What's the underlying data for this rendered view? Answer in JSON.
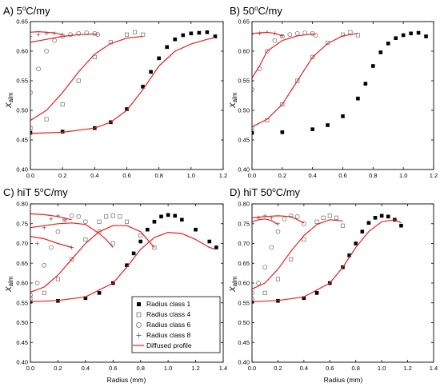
{
  "chart_data": [
    {
      "type": "scatter",
      "title": "A) 5°C/my",
      "title_main": "A) 5",
      "title_unit": "C/my",
      "xlabel": "",
      "ylabel": "Xalm",
      "ylabel_letter": "X",
      "ylabel_sub": "alm",
      "xlim": [
        0,
        1.2
      ],
      "ylim": [
        0.4,
        0.65
      ],
      "xticks": [
        "0.0",
        "0.2",
        "0.4",
        "0.6",
        "0.8",
        "1.0",
        "1.2"
      ],
      "yticks": [
        "0.40",
        "0.45",
        "0.50",
        "0.55",
        "0.60",
        "0.65"
      ],
      "series": [
        {
          "name": "Radius class 1",
          "marker": "square-filled",
          "x": [
            0,
            0.2,
            0.4,
            0.5,
            0.6,
            0.7,
            0.75,
            0.8,
            0.85,
            0.9,
            0.95,
            1.0,
            1.05,
            1.1,
            1.15
          ],
          "y": [
            0.462,
            0.464,
            0.47,
            0.48,
            0.502,
            0.54,
            0.565,
            0.588,
            0.607,
            0.62,
            0.627,
            0.63,
            0.631,
            0.632,
            0.625
          ]
        },
        {
          "name": "Radius class 4",
          "marker": "square-open",
          "x": [
            0,
            0.1,
            0.2,
            0.3,
            0.4,
            0.5,
            0.6,
            0.65,
            0.7
          ],
          "y": [
            0.47,
            0.485,
            0.51,
            0.55,
            0.59,
            0.615,
            0.628,
            0.632,
            0.628
          ]
        },
        {
          "name": "Radius class 6",
          "marker": "circle-open",
          "x": [
            0,
            0.05,
            0.1,
            0.15,
            0.2,
            0.25,
            0.3,
            0.35,
            0.4,
            0.42
          ],
          "y": [
            0.53,
            0.57,
            0.6,
            0.618,
            0.625,
            0.628,
            0.63,
            0.631,
            0.63,
            0.628
          ]
        },
        {
          "name": "Radius class 8",
          "marker": "plus",
          "x": [
            0,
            0.05,
            0.1,
            0.15,
            0.2
          ],
          "y": [
            0.625,
            0.628,
            0.63,
            0.63,
            0.628
          ]
        }
      ],
      "profiles": [
        {
          "name": "Diffused profile",
          "x": [
            0,
            0.2,
            0.4,
            0.5,
            0.6,
            0.7,
            0.8,
            0.9,
            1.0,
            1.1,
            1.15
          ],
          "y": [
            0.461,
            0.463,
            0.47,
            0.48,
            0.5,
            0.535,
            0.575,
            0.6,
            0.612,
            0.62,
            0.623
          ]
        },
        {
          "name": "Diffused profile",
          "x": [
            0,
            0.1,
            0.2,
            0.3,
            0.4,
            0.5,
            0.6,
            0.7
          ],
          "y": [
            0.483,
            0.5,
            0.53,
            0.565,
            0.595,
            0.613,
            0.622,
            0.625
          ]
        },
        {
          "name": "Diffused profile",
          "x": [
            0,
            0.1,
            0.2,
            0.3,
            0.4,
            0.42
          ],
          "y": [
            0.615,
            0.62,
            0.625,
            0.628,
            0.629,
            0.628
          ]
        },
        {
          "name": "Diffused profile",
          "x": [
            0,
            0.05,
            0.1,
            0.15,
            0.2
          ],
          "y": [
            0.632,
            0.633,
            0.632,
            0.631,
            0.628
          ]
        }
      ]
    },
    {
      "type": "scatter",
      "title": "B) 50°C/my",
      "title_main": "B) 50",
      "title_unit": "C/my",
      "xlabel": "",
      "ylabel": "Xalm",
      "ylabel_letter": "X",
      "ylabel_sub": "alm",
      "xlim": [
        0,
        1.2
      ],
      "ylim": [
        0.4,
        0.65
      ],
      "xticks": [
        "0.0",
        "0.2",
        "0.4",
        "0.6",
        "0.8",
        "1.0",
        "1.2"
      ],
      "yticks": [
        "0.40",
        "0.45",
        "0.50",
        "0.55",
        "0.60",
        "0.65"
      ],
      "series": [
        {
          "name": "Radius class 1",
          "marker": "square-filled",
          "x": [
            0,
            0.2,
            0.4,
            0.5,
            0.6,
            0.7,
            0.75,
            0.8,
            0.85,
            0.9,
            0.95,
            1.0,
            1.05,
            1.1,
            1.15
          ],
          "y": [
            0.462,
            0.463,
            0.468,
            0.475,
            0.49,
            0.52,
            0.545,
            0.575,
            0.598,
            0.613,
            0.622,
            0.627,
            0.63,
            0.631,
            0.625
          ]
        },
        {
          "name": "Radius class 4",
          "marker": "square-open",
          "x": [
            0,
            0.1,
            0.2,
            0.3,
            0.4,
            0.5,
            0.6,
            0.65,
            0.7
          ],
          "y": [
            0.47,
            0.483,
            0.51,
            0.55,
            0.59,
            0.614,
            0.628,
            0.632,
            0.627
          ]
        },
        {
          "name": "Radius class 6",
          "marker": "circle-open",
          "x": [
            0,
            0.05,
            0.1,
            0.15,
            0.2,
            0.25,
            0.3,
            0.35,
            0.4,
            0.42
          ],
          "y": [
            0.535,
            0.57,
            0.6,
            0.618,
            0.625,
            0.628,
            0.63,
            0.631,
            0.63,
            0.627
          ]
        },
        {
          "name": "Radius class 8",
          "marker": "plus",
          "x": [
            0,
            0.05,
            0.1,
            0.15,
            0.2
          ],
          "y": [
            0.628,
            0.63,
            0.632,
            0.63,
            0.626
          ]
        }
      ],
      "profiles": [
        {
          "name": "Diffused profile",
          "x": [
            0,
            0.1,
            0.2,
            0.3,
            0.4,
            0.5,
            0.6,
            0.7
          ],
          "y": [
            0.472,
            0.485,
            0.51,
            0.55,
            0.59,
            0.613,
            0.626,
            0.63
          ]
        },
        {
          "name": "Diffused profile",
          "x": [
            0,
            0.05,
            0.1,
            0.2,
            0.3,
            0.4,
            0.42
          ],
          "y": [
            0.555,
            0.575,
            0.6,
            0.618,
            0.626,
            0.629,
            0.628
          ]
        },
        {
          "name": "Diffused profile",
          "x": [
            0,
            0.05,
            0.1,
            0.15,
            0.2
          ],
          "y": [
            0.63,
            0.631,
            0.632,
            0.63,
            0.626
          ]
        }
      ]
    },
    {
      "type": "scatter",
      "title": "C) hiT 5°C/my",
      "title_main": "C) hiT 5",
      "title_unit": "C/my",
      "xlabel": "Radius (mm)",
      "ylabel": "Xalm",
      "ylabel_letter": "X",
      "ylabel_sub": "alm",
      "xlim": [
        0,
        1.4
      ],
      "ylim": [
        0.4,
        0.8
      ],
      "xticks": [
        "0.0",
        "0.2",
        "0.4",
        "0.6",
        "0.8",
        "1.0",
        "1.2",
        "1.4"
      ],
      "yticks": [
        "0.40",
        "0.45",
        "0.50",
        "0.55",
        "0.60",
        "0.65",
        "0.70",
        "0.75",
        "0.80"
      ],
      "series": [
        {
          "name": "Radius class 1",
          "marker": "square-filled",
          "x": [
            0,
            0.2,
            0.4,
            0.5,
            0.6,
            0.7,
            0.75,
            0.8,
            0.85,
            0.9,
            0.95,
            1.0,
            1.05,
            1.1,
            1.2,
            1.3,
            1.35
          ],
          "y": [
            0.553,
            0.555,
            0.562,
            0.575,
            0.6,
            0.645,
            0.675,
            0.705,
            0.735,
            0.755,
            0.768,
            0.772,
            0.77,
            0.76,
            0.735,
            0.705,
            0.69
          ]
        },
        {
          "name": "Radius class 4",
          "marker": "square-open",
          "x": [
            0,
            0.1,
            0.2,
            0.3,
            0.4,
            0.5,
            0.55,
            0.6,
            0.65,
            0.7,
            0.8,
            0.9
          ],
          "y": [
            0.56,
            0.575,
            0.61,
            0.66,
            0.71,
            0.755,
            0.768,
            0.77,
            0.768,
            0.755,
            0.72,
            0.69
          ]
        },
        {
          "name": "Radius class 6",
          "marker": "circle-open",
          "x": [
            0,
            0.05,
            0.1,
            0.15,
            0.2,
            0.25,
            0.3,
            0.35,
            0.4,
            0.5,
            0.6
          ],
          "y": [
            0.57,
            0.6,
            0.645,
            0.69,
            0.73,
            0.76,
            0.77,
            0.768,
            0.755,
            0.73,
            0.7
          ]
        },
        {
          "name": "Radius class 8",
          "marker": "plus",
          "x": [
            0,
            0.05,
            0.1,
            0.15,
            0.2,
            0.25,
            0.3
          ],
          "y": [
            0.65,
            0.7,
            0.74,
            0.762,
            0.77,
            0.76,
            0.69
          ]
        }
      ],
      "profiles": [
        {
          "name": "Diffused profile",
          "x": [
            0,
            0.2,
            0.4,
            0.6,
            0.7,
            0.8,
            0.9,
            1.0,
            1.1,
            1.2,
            1.3,
            1.35
          ],
          "y": [
            0.553,
            0.556,
            0.565,
            0.6,
            0.64,
            0.685,
            0.715,
            0.728,
            0.725,
            0.71,
            0.69,
            0.685
          ]
        },
        {
          "name": "Diffused profile",
          "x": [
            0,
            0.1,
            0.2,
            0.3,
            0.4,
            0.5,
            0.6,
            0.7,
            0.8,
            0.9
          ],
          "y": [
            0.577,
            0.59,
            0.62,
            0.66,
            0.7,
            0.73,
            0.745,
            0.745,
            0.73,
            0.69
          ]
        },
        {
          "name": "Diffused profile",
          "x": [
            0,
            0.1,
            0.2,
            0.3,
            0.4,
            0.5,
            0.55,
            0.6
          ],
          "y": [
            0.74,
            0.745,
            0.75,
            0.752,
            0.748,
            0.725,
            0.71,
            0.69
          ]
        },
        {
          "name": "Diffused profile",
          "x": [
            0,
            0.1,
            0.2,
            0.3
          ],
          "y": [
            0.718,
            0.712,
            0.7,
            0.69
          ]
        },
        {
          "name": "Diffused profile",
          "x": [
            0,
            0.1,
            0.2,
            0.3
          ],
          "y": [
            0.775,
            0.773,
            0.768,
            0.76
          ]
        }
      ]
    },
    {
      "type": "scatter",
      "title": "D) hiT 50°C/my",
      "title_main": "D) hiT 50",
      "title_unit": "C/my",
      "xlabel": "Radius (mm)",
      "ylabel": "Xalm",
      "ylabel_letter": "X",
      "ylabel_sub": "alm",
      "xlim": [
        0,
        1.4
      ],
      "ylim": [
        0.4,
        0.8
      ],
      "xticks": [
        "0.0",
        "0.2",
        "0.4",
        "0.6",
        "0.8",
        "1.0",
        "1.2",
        "1.4"
      ],
      "yticks": [
        "0.40",
        "0.45",
        "0.50",
        "0.55",
        "0.60",
        "0.65",
        "0.70",
        "0.75",
        "0.80"
      ],
      "series": [
        {
          "name": "Radius class 1",
          "marker": "square-filled",
          "x": [
            0,
            0.2,
            0.4,
            0.5,
            0.6,
            0.7,
            0.75,
            0.8,
            0.85,
            0.9,
            0.95,
            1.0,
            1.05,
            1.1,
            1.15
          ],
          "y": [
            0.553,
            0.555,
            0.562,
            0.575,
            0.6,
            0.64,
            0.67,
            0.7,
            0.73,
            0.752,
            0.765,
            0.77,
            0.768,
            0.76,
            0.745
          ]
        },
        {
          "name": "Radius class 4",
          "marker": "square-open",
          "x": [
            0,
            0.1,
            0.2,
            0.3,
            0.4,
            0.5,
            0.55,
            0.6,
            0.65,
            0.7
          ],
          "y": [
            0.56,
            0.575,
            0.61,
            0.66,
            0.71,
            0.755,
            0.765,
            0.77,
            0.765,
            0.745
          ]
        },
        {
          "name": "Radius class 6",
          "marker": "circle-open",
          "x": [
            0,
            0.05,
            0.1,
            0.15,
            0.2,
            0.25,
            0.3,
            0.35,
            0.4
          ],
          "y": [
            0.575,
            0.6,
            0.64,
            0.69,
            0.73,
            0.762,
            0.77,
            0.768,
            0.75
          ]
        },
        {
          "name": "Radius class 8",
          "marker": "plus",
          "x": [
            0,
            0.05,
            0.1,
            0.15,
            0.2
          ],
          "y": [
            0.75,
            0.765,
            0.77,
            0.765,
            0.75
          ]
        }
      ],
      "profiles": [
        {
          "name": "Diffused profile",
          "x": [
            0,
            0.2,
            0.4,
            0.6,
            0.7,
            0.8,
            0.9,
            1.0,
            1.1,
            1.15
          ],
          "y": [
            0.553,
            0.556,
            0.565,
            0.6,
            0.64,
            0.69,
            0.73,
            0.755,
            0.76,
            0.752
          ]
        },
        {
          "name": "Diffused profile",
          "x": [
            0,
            0.1,
            0.2,
            0.3,
            0.4,
            0.5,
            0.6,
            0.7
          ],
          "y": [
            0.585,
            0.6,
            0.635,
            0.68,
            0.72,
            0.748,
            0.76,
            0.757
          ]
        },
        {
          "name": "Diffused profile",
          "x": [
            0,
            0.1,
            0.2,
            0.3,
            0.4
          ],
          "y": [
            0.765,
            0.768,
            0.77,
            0.768,
            0.752
          ]
        },
        {
          "name": "Diffused profile",
          "x": [
            0,
            0.05,
            0.1,
            0.15,
            0.2
          ],
          "y": [
            0.755,
            0.76,
            0.762,
            0.758,
            0.748
          ]
        }
      ]
    }
  ],
  "legend": {
    "entries": [
      {
        "label": "Radius class 1",
        "marker": "square-filled"
      },
      {
        "label": "Radius class 4",
        "marker": "square-open"
      },
      {
        "label": "Radius class 6",
        "marker": "circle-open"
      },
      {
        "label": "Radius class 8",
        "marker": "plus"
      },
      {
        "label": "Diffused profile",
        "marker": "line-red"
      }
    ],
    "placement": "bottom-right of panel C"
  },
  "colors": {
    "data": "#000000",
    "profile": "#e8201c",
    "open_marker": "#6f6f6f",
    "frame": "#000000"
  }
}
